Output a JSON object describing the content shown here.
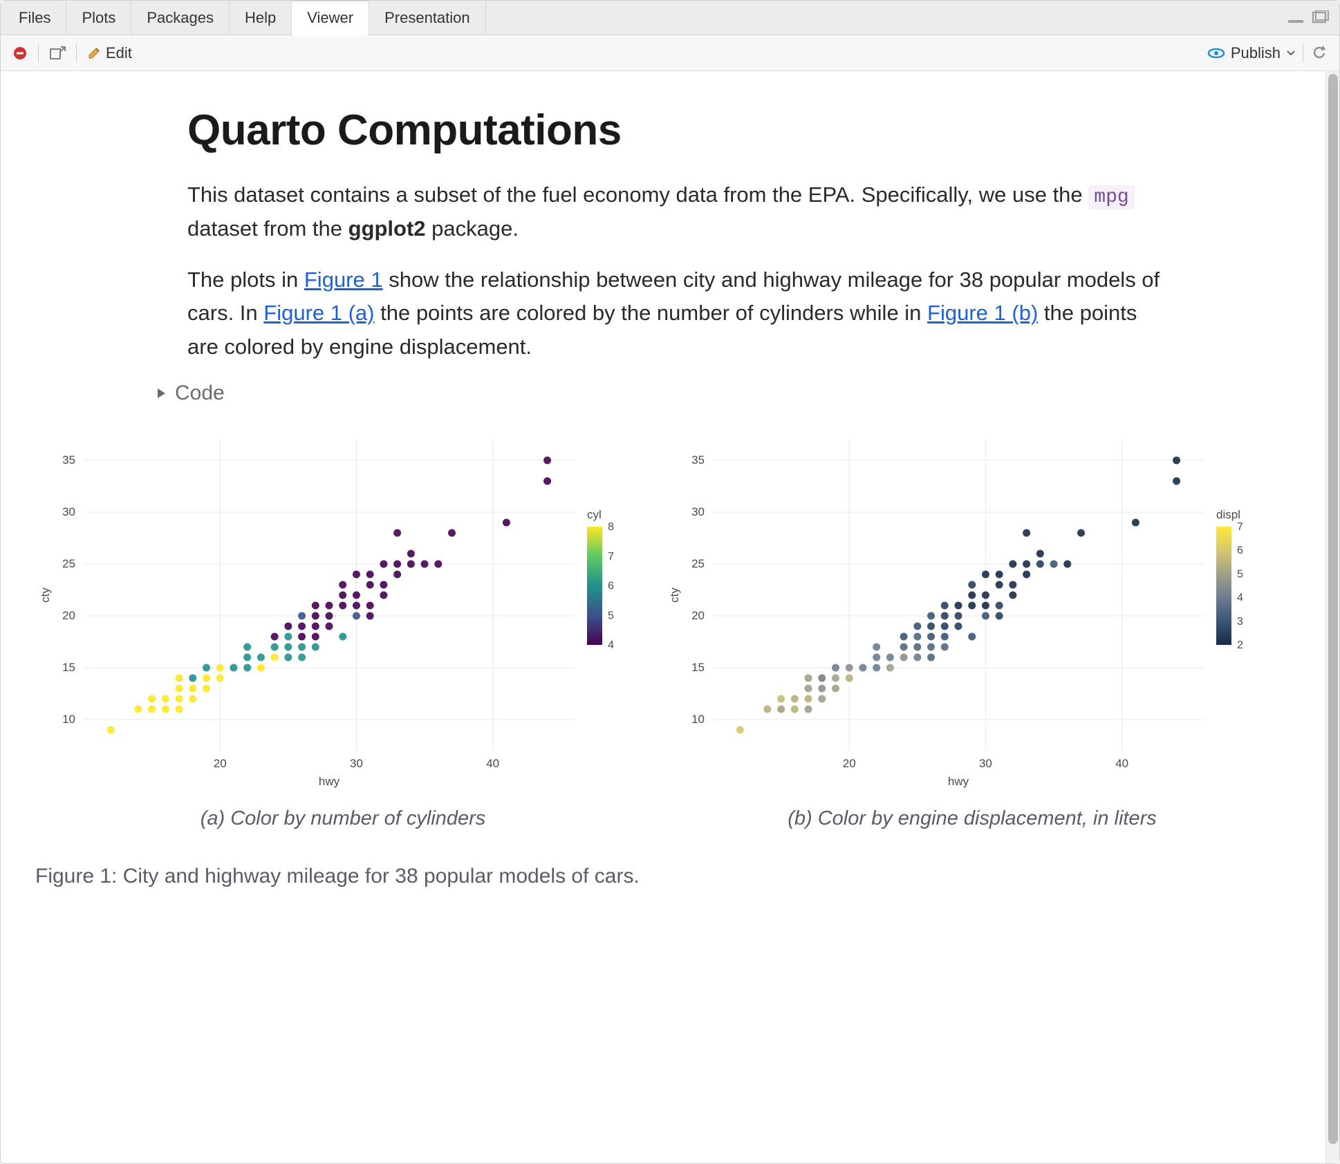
{
  "tabs": {
    "items": [
      "Files",
      "Plots",
      "Packages",
      "Help",
      "Viewer",
      "Presentation"
    ],
    "active": "Viewer"
  },
  "toolbar": {
    "edit_label": "Edit",
    "publish_label": "Publish"
  },
  "document": {
    "title": "Quarto Computations",
    "para1_pre": "This dataset contains a subset of the fuel economy data from the EPA. Specifically, we use the ",
    "para1_code": "mpg",
    "para1_mid": " dataset from the ",
    "para1_bold": "ggplot2",
    "para1_post": " package.",
    "para2_pre": "The plots in ",
    "para2_link1": "Figure 1",
    "para2_mid1": " show the relationship between city and highway mileage for 38 popular models of cars. In ",
    "para2_link2": "Figure 1 (a)",
    "para2_mid2": " the points are colored by the number of cylinders while in ",
    "para2_link3": "Figure 1 (b)",
    "para2_post": " the points are colored by engine displacement.",
    "code_toggle": "Code",
    "figure_caption": "Figure 1: City and highway mileage for 38 popular models of cars."
  },
  "chart_a": {
    "type": "scatter",
    "xlabel": "hwy",
    "ylabel": "cty",
    "xlim": [
      10,
      46
    ],
    "ylim": [
      7,
      37
    ],
    "xticks": [
      20,
      30,
      40
    ],
    "yticks": [
      10,
      15,
      20,
      25,
      30,
      35
    ],
    "background_color": "#ffffff",
    "grid_color": "#e8e8e8",
    "marker_radius": 5.5,
    "marker_opacity": 0.9,
    "legend": {
      "title": "cyl",
      "ticks": [
        4,
        5,
        6,
        7,
        8
      ],
      "gradient": [
        "#440154",
        "#3b528b",
        "#21918c",
        "#5ec962",
        "#fde725"
      ]
    },
    "subcaption": "(a) Color by number of cylinders",
    "points": [
      {
        "x": 12,
        "y": 9,
        "c": "#fde725"
      },
      {
        "x": 14,
        "y": 11,
        "c": "#fde725"
      },
      {
        "x": 15,
        "y": 11,
        "c": "#fde725"
      },
      {
        "x": 16,
        "y": 11,
        "c": "#fde725"
      },
      {
        "x": 17,
        "y": 11,
        "c": "#fde725"
      },
      {
        "x": 15,
        "y": 12,
        "c": "#fde725"
      },
      {
        "x": 16,
        "y": 12,
        "c": "#fde725"
      },
      {
        "x": 17,
        "y": 12,
        "c": "#fde725"
      },
      {
        "x": 18,
        "y": 12,
        "c": "#fde725"
      },
      {
        "x": 17,
        "y": 13,
        "c": "#fde725"
      },
      {
        "x": 18,
        "y": 13,
        "c": "#fde725"
      },
      {
        "x": 19,
        "y": 13,
        "c": "#fde725"
      },
      {
        "x": 17,
        "y": 14,
        "c": "#fde725"
      },
      {
        "x": 18,
        "y": 14,
        "c": "#21918c"
      },
      {
        "x": 19,
        "y": 14,
        "c": "#fde725"
      },
      {
        "x": 20,
        "y": 14,
        "c": "#fde725"
      },
      {
        "x": 19,
        "y": 15,
        "c": "#21918c"
      },
      {
        "x": 20,
        "y": 15,
        "c": "#fde725"
      },
      {
        "x": 21,
        "y": 15,
        "c": "#21918c"
      },
      {
        "x": 22,
        "y": 15,
        "c": "#21918c"
      },
      {
        "x": 23,
        "y": 15,
        "c": "#fde725"
      },
      {
        "x": 22,
        "y": 16,
        "c": "#21918c"
      },
      {
        "x": 23,
        "y": 16,
        "c": "#21918c"
      },
      {
        "x": 24,
        "y": 16,
        "c": "#fde725"
      },
      {
        "x": 25,
        "y": 16,
        "c": "#21918c"
      },
      {
        "x": 26,
        "y": 16,
        "c": "#21918c"
      },
      {
        "x": 22,
        "y": 17,
        "c": "#21918c"
      },
      {
        "x": 24,
        "y": 17,
        "c": "#21918c"
      },
      {
        "x": 25,
        "y": 17,
        "c": "#21918c"
      },
      {
        "x": 26,
        "y": 17,
        "c": "#21918c"
      },
      {
        "x": 27,
        "y": 17,
        "c": "#21918c"
      },
      {
        "x": 24,
        "y": 18,
        "c": "#440154"
      },
      {
        "x": 25,
        "y": 18,
        "c": "#21918c"
      },
      {
        "x": 26,
        "y": 18,
        "c": "#440154"
      },
      {
        "x": 27,
        "y": 18,
        "c": "#440154"
      },
      {
        "x": 29,
        "y": 18,
        "c": "#21918c"
      },
      {
        "x": 25,
        "y": 19,
        "c": "#440154"
      },
      {
        "x": 26,
        "y": 19,
        "c": "#440154"
      },
      {
        "x": 27,
        "y": 19,
        "c": "#440154"
      },
      {
        "x": 28,
        "y": 19,
        "c": "#440154"
      },
      {
        "x": 26,
        "y": 20,
        "c": "#3b528b"
      },
      {
        "x": 27,
        "y": 20,
        "c": "#440154"
      },
      {
        "x": 28,
        "y": 20,
        "c": "#440154"
      },
      {
        "x": 30,
        "y": 20,
        "c": "#3b528b"
      },
      {
        "x": 31,
        "y": 20,
        "c": "#440154"
      },
      {
        "x": 27,
        "y": 21,
        "c": "#440154"
      },
      {
        "x": 28,
        "y": 21,
        "c": "#440154"
      },
      {
        "x": 29,
        "y": 21,
        "c": "#440154"
      },
      {
        "x": 30,
        "y": 21,
        "c": "#440154"
      },
      {
        "x": 31,
        "y": 21,
        "c": "#440154"
      },
      {
        "x": 29,
        "y": 22,
        "c": "#440154"
      },
      {
        "x": 30,
        "y": 22,
        "c": "#440154"
      },
      {
        "x": 32,
        "y": 22,
        "c": "#440154"
      },
      {
        "x": 29,
        "y": 23,
        "c": "#440154"
      },
      {
        "x": 31,
        "y": 23,
        "c": "#440154"
      },
      {
        "x": 32,
        "y": 23,
        "c": "#440154"
      },
      {
        "x": 30,
        "y": 24,
        "c": "#440154"
      },
      {
        "x": 31,
        "y": 24,
        "c": "#440154"
      },
      {
        "x": 33,
        "y": 24,
        "c": "#440154"
      },
      {
        "x": 32,
        "y": 25,
        "c": "#440154"
      },
      {
        "x": 33,
        "y": 25,
        "c": "#440154"
      },
      {
        "x": 34,
        "y": 25,
        "c": "#440154"
      },
      {
        "x": 35,
        "y": 25,
        "c": "#440154"
      },
      {
        "x": 36,
        "y": 25,
        "c": "#440154"
      },
      {
        "x": 34,
        "y": 26,
        "c": "#440154"
      },
      {
        "x": 33,
        "y": 28,
        "c": "#440154"
      },
      {
        "x": 37,
        "y": 28,
        "c": "#440154"
      },
      {
        "x": 41,
        "y": 29,
        "c": "#440154"
      },
      {
        "x": 44,
        "y": 33,
        "c": "#440154"
      },
      {
        "x": 44,
        "y": 35,
        "c": "#440154"
      }
    ]
  },
  "chart_b": {
    "type": "scatter",
    "xlabel": "hwy",
    "ylabel": "cty",
    "xlim": [
      10,
      46
    ],
    "ylim": [
      7,
      37
    ],
    "xticks": [
      20,
      30,
      40
    ],
    "yticks": [
      10,
      15,
      20,
      25,
      30,
      35
    ],
    "background_color": "#ffffff",
    "grid_color": "#e8e8e8",
    "marker_radius": 5.5,
    "marker_opacity": 0.9,
    "legend": {
      "title": "displ",
      "ticks": [
        2,
        3,
        4,
        5,
        6,
        7
      ],
      "gradient": [
        "#182b49",
        "#3a5576",
        "#6b7d8f",
        "#a0a08a",
        "#d6c76a",
        "#fee838"
      ]
    },
    "subcaption": "(b) Color by engine displacement, in liters",
    "points": [
      {
        "x": 12,
        "y": 9,
        "c": "#d6c76a"
      },
      {
        "x": 14,
        "y": 11,
        "c": "#b8b078"
      },
      {
        "x": 15,
        "y": 11,
        "c": "#a8a080"
      },
      {
        "x": 16,
        "y": 11,
        "c": "#b8b078"
      },
      {
        "x": 17,
        "y": 11,
        "c": "#a0a08a"
      },
      {
        "x": 15,
        "y": 12,
        "c": "#c8bc70"
      },
      {
        "x": 16,
        "y": 12,
        "c": "#b8b078"
      },
      {
        "x": 17,
        "y": 12,
        "c": "#b8b078"
      },
      {
        "x": 18,
        "y": 12,
        "c": "#a0a08a"
      },
      {
        "x": 17,
        "y": 13,
        "c": "#a0a08a"
      },
      {
        "x": 18,
        "y": 13,
        "c": "#908e8a"
      },
      {
        "x": 19,
        "y": 13,
        "c": "#a0a08a"
      },
      {
        "x": 17,
        "y": 14,
        "c": "#a0a08a"
      },
      {
        "x": 18,
        "y": 14,
        "c": "#807a85"
      },
      {
        "x": 19,
        "y": 14,
        "c": "#a0a08a"
      },
      {
        "x": 20,
        "y": 14,
        "c": "#b8b078"
      },
      {
        "x": 19,
        "y": 15,
        "c": "#6b7d8f"
      },
      {
        "x": 20,
        "y": 15,
        "c": "#908e8a"
      },
      {
        "x": 21,
        "y": 15,
        "c": "#6b7d8f"
      },
      {
        "x": 22,
        "y": 15,
        "c": "#6b7d8f"
      },
      {
        "x": 23,
        "y": 15,
        "c": "#a0a08a"
      },
      {
        "x": 22,
        "y": 16,
        "c": "#6b7d8f"
      },
      {
        "x": 23,
        "y": 16,
        "c": "#6b7d8f"
      },
      {
        "x": 24,
        "y": 16,
        "c": "#908e8a"
      },
      {
        "x": 25,
        "y": 16,
        "c": "#6b7d8f"
      },
      {
        "x": 26,
        "y": 16,
        "c": "#506880"
      },
      {
        "x": 22,
        "y": 17,
        "c": "#6b7d8f"
      },
      {
        "x": 24,
        "y": 17,
        "c": "#506880"
      },
      {
        "x": 25,
        "y": 17,
        "c": "#506880"
      },
      {
        "x": 26,
        "y": 17,
        "c": "#506880"
      },
      {
        "x": 27,
        "y": 17,
        "c": "#506880"
      },
      {
        "x": 24,
        "y": 18,
        "c": "#3a5576"
      },
      {
        "x": 25,
        "y": 18,
        "c": "#506880"
      },
      {
        "x": 26,
        "y": 18,
        "c": "#3a5576"
      },
      {
        "x": 27,
        "y": 18,
        "c": "#3a5576"
      },
      {
        "x": 29,
        "y": 18,
        "c": "#3a5576"
      },
      {
        "x": 25,
        "y": 19,
        "c": "#3a5576"
      },
      {
        "x": 26,
        "y": 19,
        "c": "#28405e"
      },
      {
        "x": 27,
        "y": 19,
        "c": "#28405e"
      },
      {
        "x": 28,
        "y": 19,
        "c": "#28405e"
      },
      {
        "x": 26,
        "y": 20,
        "c": "#3a5576"
      },
      {
        "x": 27,
        "y": 20,
        "c": "#28405e"
      },
      {
        "x": 28,
        "y": 20,
        "c": "#28405e"
      },
      {
        "x": 30,
        "y": 20,
        "c": "#3a5576"
      },
      {
        "x": 31,
        "y": 20,
        "c": "#28405e"
      },
      {
        "x": 27,
        "y": 21,
        "c": "#28405e"
      },
      {
        "x": 28,
        "y": 21,
        "c": "#182b49"
      },
      {
        "x": 29,
        "y": 21,
        "c": "#182b49"
      },
      {
        "x": 30,
        "y": 21,
        "c": "#182b49"
      },
      {
        "x": 31,
        "y": 21,
        "c": "#28405e"
      },
      {
        "x": 29,
        "y": 22,
        "c": "#182b49"
      },
      {
        "x": 30,
        "y": 22,
        "c": "#182b49"
      },
      {
        "x": 32,
        "y": 22,
        "c": "#182b49"
      },
      {
        "x": 29,
        "y": 23,
        "c": "#28405e"
      },
      {
        "x": 31,
        "y": 23,
        "c": "#182b49"
      },
      {
        "x": 32,
        "y": 23,
        "c": "#182b49"
      },
      {
        "x": 30,
        "y": 24,
        "c": "#182b49"
      },
      {
        "x": 31,
        "y": 24,
        "c": "#182b49"
      },
      {
        "x": 33,
        "y": 24,
        "c": "#182b49"
      },
      {
        "x": 32,
        "y": 25,
        "c": "#182b49"
      },
      {
        "x": 33,
        "y": 25,
        "c": "#182b49"
      },
      {
        "x": 34,
        "y": 25,
        "c": "#28405e"
      },
      {
        "x": 35,
        "y": 25,
        "c": "#3a5576"
      },
      {
        "x": 36,
        "y": 25,
        "c": "#182b49"
      },
      {
        "x": 34,
        "y": 26,
        "c": "#182b49"
      },
      {
        "x": 33,
        "y": 28,
        "c": "#182b49"
      },
      {
        "x": 37,
        "y": 28,
        "c": "#182b49"
      },
      {
        "x": 41,
        "y": 29,
        "c": "#182b49"
      },
      {
        "x": 44,
        "y": 33,
        "c": "#182b49"
      },
      {
        "x": 44,
        "y": 35,
        "c": "#182b49"
      }
    ]
  }
}
